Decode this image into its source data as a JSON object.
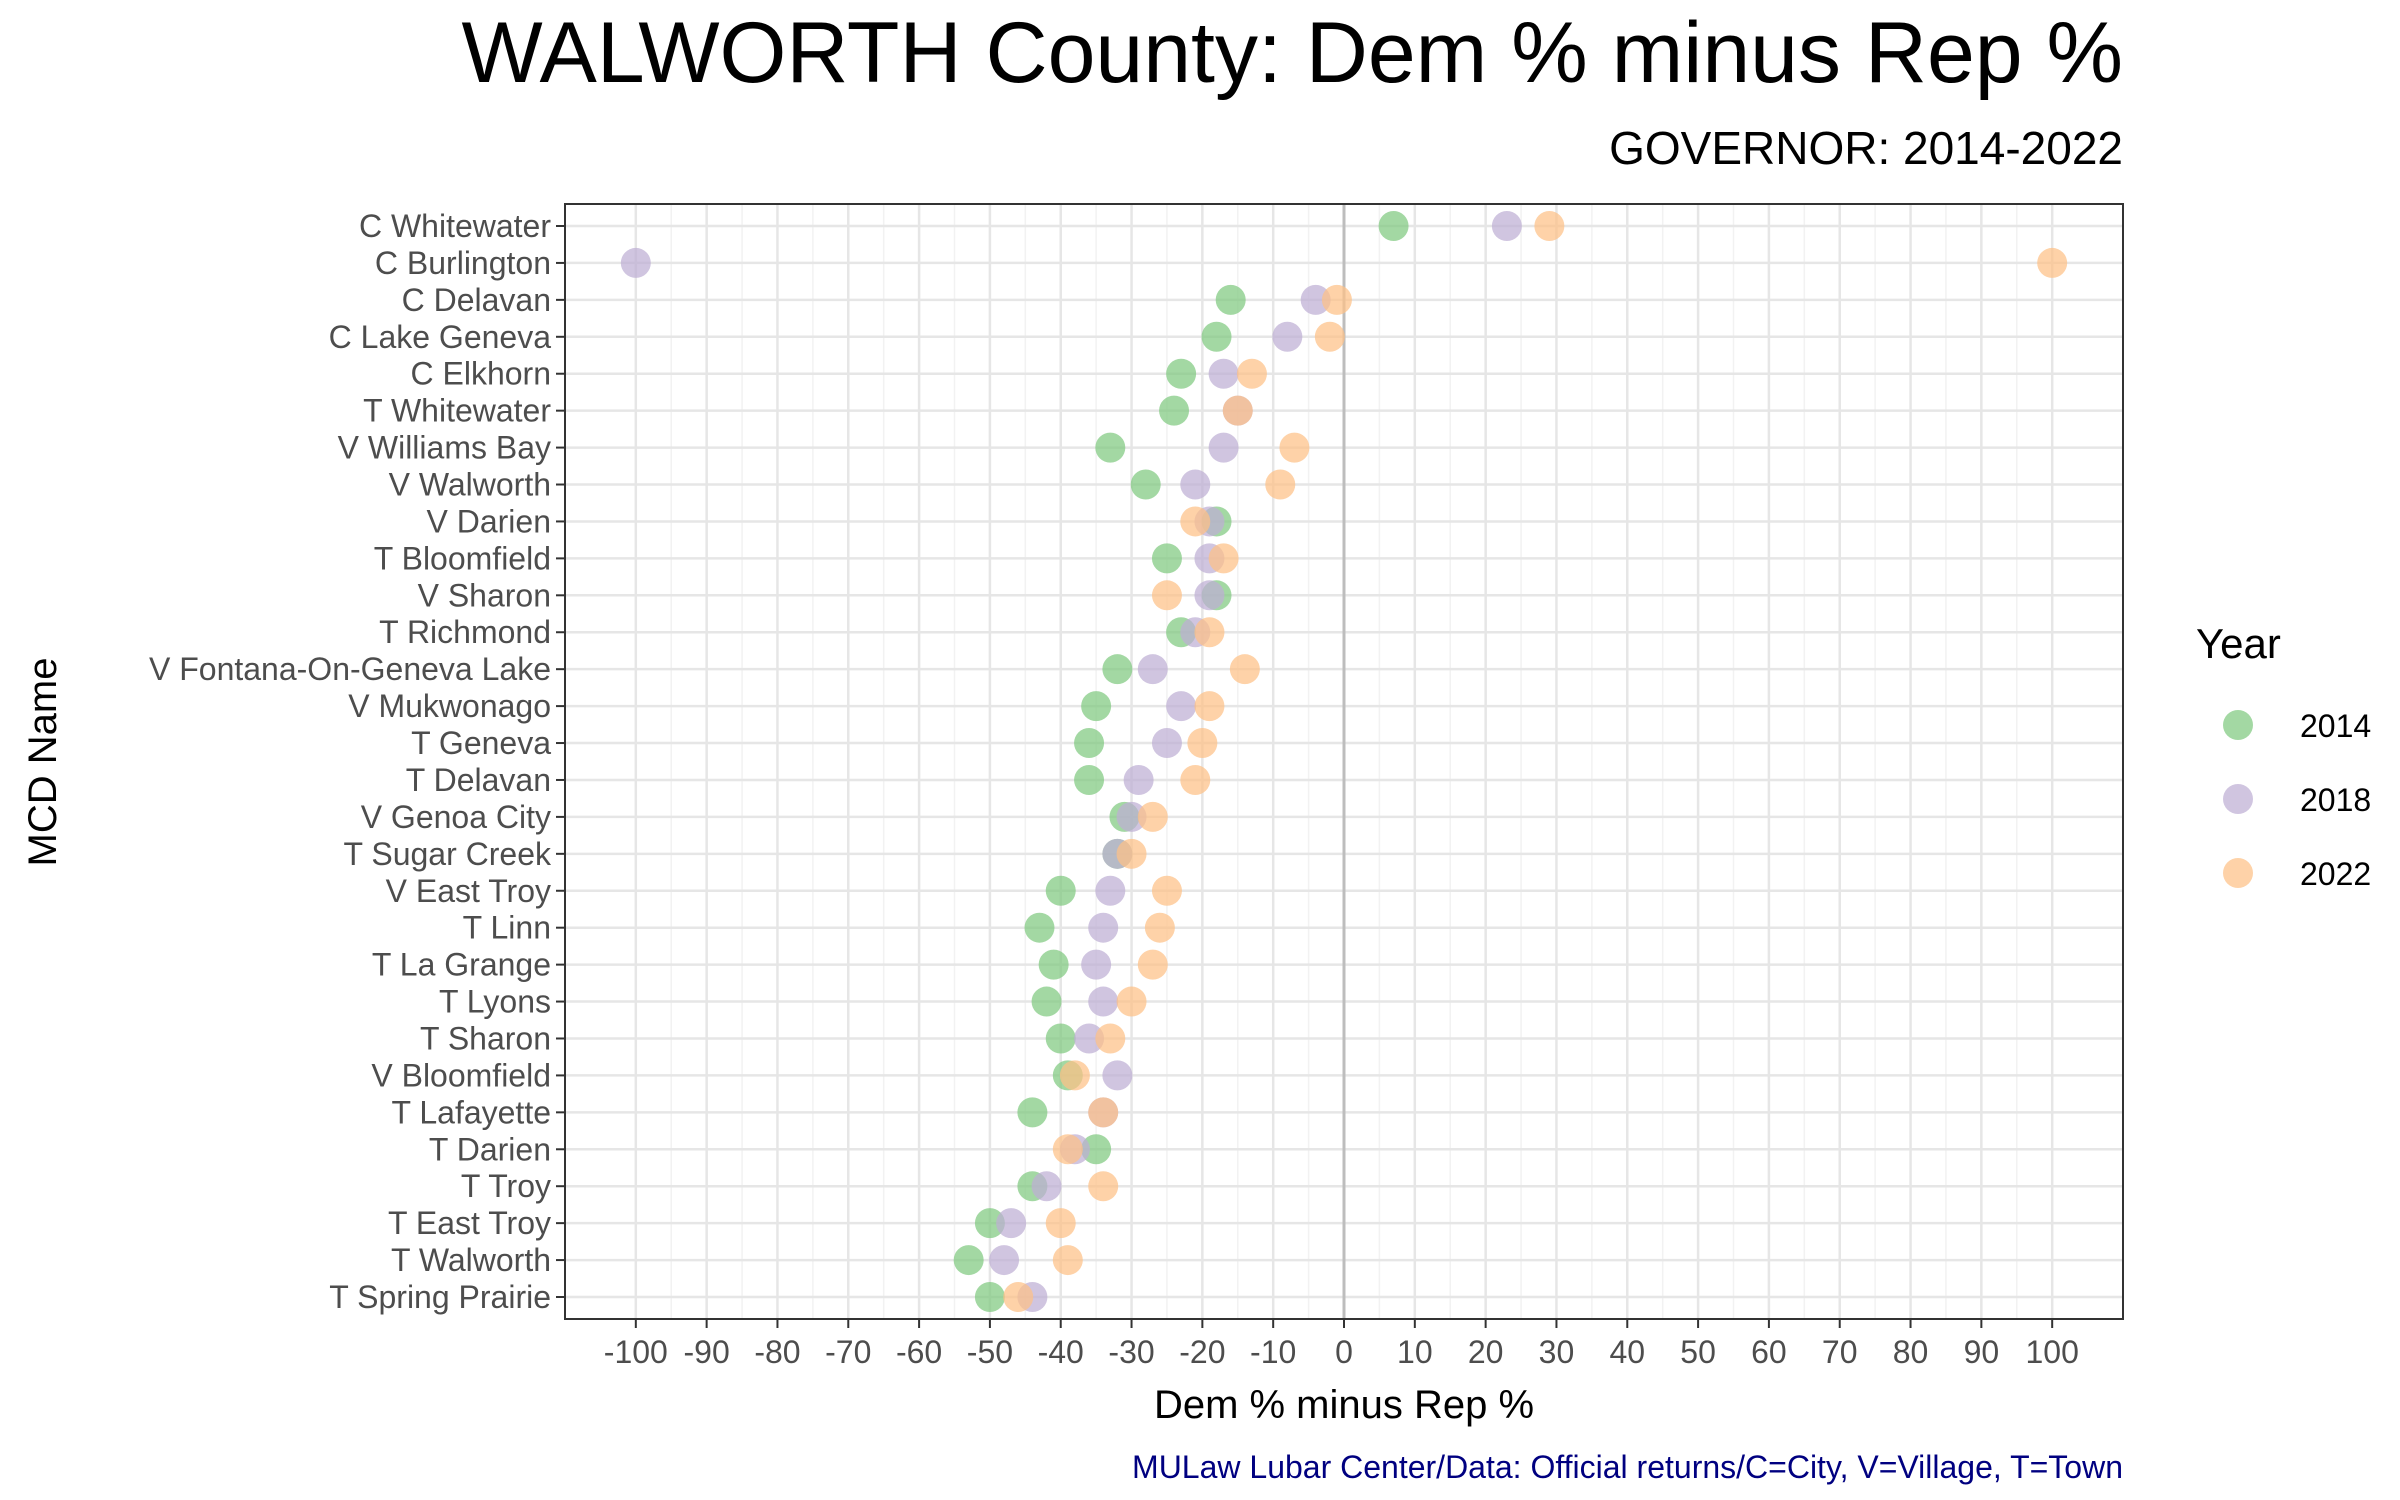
{
  "chart_data": {
    "type": "scatter",
    "title": "WALWORTH County: Dem % minus Rep %",
    "subtitle": "GOVERNOR: 2014-2022",
    "xlabel": "Dem % minus Rep %",
    "ylabel": "MCD Name",
    "caption": "MULaw Lubar Center/Data: Official returns/C=City, V=Village, T=Town",
    "xlim": [
      -110,
      110
    ],
    "x_ticks": [
      -100,
      -90,
      -80,
      -70,
      -60,
      -50,
      -40,
      -30,
      -20,
      -10,
      0,
      10,
      20,
      30,
      40,
      50,
      60,
      70,
      80,
      90,
      100
    ],
    "grid": true,
    "zero_line": true,
    "legend": {
      "title": "Year",
      "position": "right"
    },
    "categories": [
      "C Whitewater",
      "C Burlington",
      "C Delavan",
      "C Lake Geneva",
      "C Elkhorn",
      "T Whitewater",
      "V Williams Bay",
      "V Walworth",
      "V Darien",
      "T Bloomfield",
      "V Sharon",
      "T Richmond",
      "V Fontana-On-Geneva Lake",
      "V Mukwonago",
      "T Geneva",
      "T Delavan",
      "V Genoa City",
      "T Sugar Creek",
      "V East Troy",
      "T Linn",
      "T La Grange",
      "T Lyons",
      "T Sharon",
      "V Bloomfield",
      "T Lafayette",
      "T Darien",
      "T Troy",
      "T East Troy",
      "T Walworth",
      "T Spring Prairie"
    ],
    "series": [
      {
        "name": "2014",
        "color": "#7FC97F",
        "values": [
          7,
          null,
          -16,
          -18,
          -23,
          -24,
          -33,
          -28,
          -18,
          -25,
          -18,
          -23,
          -32,
          -35,
          -36,
          -36,
          -31,
          -32,
          -40,
          -43,
          -41,
          -42,
          -40,
          -39,
          -44,
          -35,
          -44,
          -50,
          -53,
          -50
        ]
      },
      {
        "name": "2018",
        "color": "#BEAED4",
        "values": [
          23,
          -100,
          -4,
          -8,
          -17,
          -15,
          -17,
          -21,
          -19,
          -19,
          -19,
          -21,
          -27,
          -23,
          -25,
          -29,
          -30,
          -32,
          -33,
          -34,
          -35,
          -34,
          -36,
          -32,
          -34,
          -38,
          -42,
          -47,
          -48,
          -44
        ]
      },
      {
        "name": "2022",
        "color": "#FDC086",
        "values": [
          29,
          100,
          -1,
          -2,
          -13,
          -15,
          -7,
          -9,
          -21,
          -17,
          -25,
          -19,
          -14,
          -19,
          -20,
          -21,
          -27,
          -30,
          -25,
          -26,
          -27,
          -30,
          -33,
          -38,
          -34,
          -39,
          -34,
          -40,
          -39,
          -46
        ]
      }
    ]
  }
}
